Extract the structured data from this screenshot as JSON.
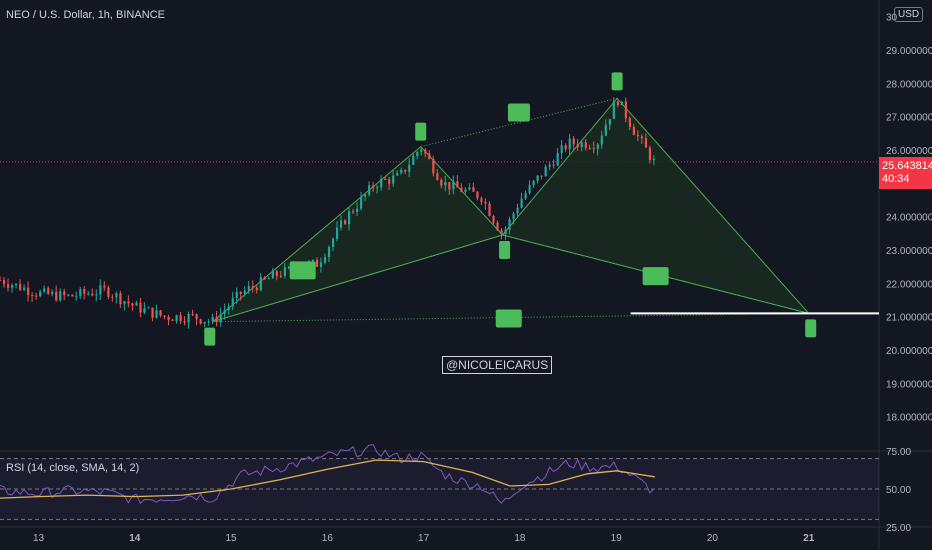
{
  "header": {
    "ticker": "NEO / U.S. Dollar, 1h, BINANCE",
    "currency_button": "USD"
  },
  "watermark": "@NICOLEICARUS",
  "price_tag": {
    "price": "25.643814",
    "countdown": "40:34"
  },
  "rsi_panel": {
    "label": "RSI (14, close, SMA, 14, 2)"
  },
  "colors": {
    "background": "#131722",
    "up_candle": "#26a69a",
    "down_candle": "#ef5350",
    "pattern_fill": "#1a2a1f",
    "pattern_line": "#4caf50",
    "marker": "#4cbb5a",
    "rsi_line": "#7e57c2",
    "rsi_sma": "#e0b455",
    "price_line": "#f23645"
  },
  "chart_data": {
    "type": "candlestick",
    "title": "NEO / U.S. Dollar, 1h, BINANCE",
    "x_ticks": [
      "13",
      "14",
      "15",
      "16",
      "17",
      "18",
      "19",
      "20",
      "21"
    ],
    "y_ticks": [
      18,
      19,
      20,
      21,
      22,
      23,
      24,
      25,
      26,
      27,
      28,
      29,
      30
    ],
    "y_tick_labels": [
      "18.000000",
      "19.000000",
      "20.000000",
      "21.000000",
      "22.000000",
      "23.000000",
      "24.000000",
      "25.000000",
      "26.000000",
      "27.000000",
      "28.000000",
      "29.000000",
      "30"
    ],
    "ylim": [
      17,
      30.5
    ],
    "xlim": [
      12.6,
      21.73
    ],
    "current_price": 25.643814,
    "support_level": 21.1,
    "pattern_points": [
      {
        "x": 14.81,
        "y": 20.85
      },
      {
        "x": 16.97,
        "y": 26.1
      },
      {
        "x": 17.82,
        "y": 23.45
      },
      {
        "x": 19.01,
        "y": 27.55
      },
      {
        "x": 21.0,
        "y": 21.1
      }
    ],
    "price_path": [
      [
        12.6,
        22.1
      ],
      [
        13.0,
        21.7
      ],
      [
        13.3,
        21.6
      ],
      [
        13.7,
        21.8
      ],
      [
        14.0,
        21.3
      ],
      [
        14.3,
        21.0
      ],
      [
        14.6,
        21.0
      ],
      [
        14.81,
        20.85
      ],
      [
        15.1,
        21.7
      ],
      [
        15.5,
        22.3
      ],
      [
        15.9,
        22.6
      ],
      [
        16.2,
        24.0
      ],
      [
        16.5,
        25.0
      ],
      [
        16.75,
        25.2
      ],
      [
        16.97,
        26.1
      ],
      [
        17.2,
        25.0
      ],
      [
        17.4,
        24.8
      ],
      [
        17.6,
        24.6
      ],
      [
        17.82,
        23.45
      ],
      [
        18.0,
        24.5
      ],
      [
        18.2,
        25.2
      ],
      [
        18.5,
        26.2
      ],
      [
        18.8,
        26.2
      ],
      [
        19.01,
        27.55
      ],
      [
        19.2,
        26.5
      ],
      [
        19.4,
        25.6
      ]
    ],
    "rsi": {
      "ylim": [
        25,
        75
      ],
      "y_ticks": [
        25,
        50,
        75
      ],
      "y_tick_labels": [
        "25.00",
        "50.00",
        "75.00"
      ],
      "levels": [
        30,
        50,
        70
      ],
      "rsi_path": [
        [
          12.6,
          49
        ],
        [
          13.0,
          47
        ],
        [
          13.3,
          49
        ],
        [
          13.7,
          48
        ],
        [
          14.0,
          43
        ],
        [
          14.3,
          44
        ],
        [
          14.6,
          46
        ],
        [
          14.81,
          44
        ],
        [
          15.1,
          59
        ],
        [
          15.5,
          64
        ],
        [
          15.9,
          70
        ],
        [
          16.2,
          74
        ],
        [
          16.5,
          76
        ],
        [
          16.75,
          70
        ],
        [
          16.97,
          72
        ],
        [
          17.2,
          60
        ],
        [
          17.4,
          55
        ],
        [
          17.6,
          52
        ],
        [
          17.82,
          40
        ],
        [
          18.0,
          52
        ],
        [
          18.2,
          58
        ],
        [
          18.5,
          67
        ],
        [
          18.8,
          64
        ],
        [
          19.01,
          65
        ],
        [
          19.2,
          57
        ],
        [
          19.4,
          48
        ]
      ],
      "sma_path": [
        [
          12.6,
          44
        ],
        [
          13.0,
          45
        ],
        [
          13.5,
          46
        ],
        [
          14.0,
          45
        ],
        [
          14.5,
          46
        ],
        [
          15.0,
          50
        ],
        [
          15.5,
          56
        ],
        [
          16.0,
          63
        ],
        [
          16.5,
          69
        ],
        [
          17.0,
          68
        ],
        [
          17.5,
          61
        ],
        [
          17.9,
          52
        ],
        [
          18.3,
          53
        ],
        [
          18.7,
          60
        ],
        [
          19.0,
          62
        ],
        [
          19.4,
          58
        ]
      ]
    }
  }
}
